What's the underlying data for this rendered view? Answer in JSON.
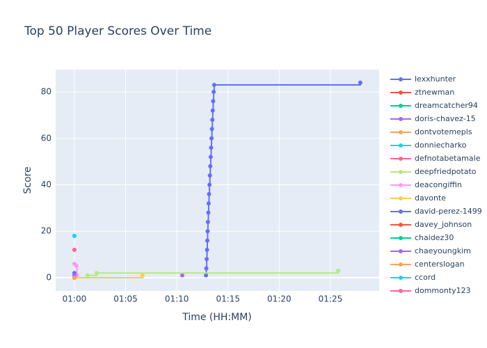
{
  "chart_data": {
    "type": "line",
    "title": "Top 50 Player Scores Over Time",
    "x_label": "Time (HH:MM)",
    "y_label": "Score",
    "line_shape": "hv",
    "grid": true,
    "xlim": [
      58.17,
      89.76
    ],
    "xticks": [
      {
        "value": 60,
        "label": "01:00"
      },
      {
        "value": 65,
        "label": "01:05"
      },
      {
        "value": 70,
        "label": "01:10"
      },
      {
        "value": 75,
        "label": "01:15"
      },
      {
        "value": 80,
        "label": "01:20"
      },
      {
        "value": 85,
        "label": "01:25"
      }
    ],
    "ylim": [
      -5.7,
      89.6
    ],
    "yticks": [
      0,
      20,
      40,
      60,
      80
    ],
    "series": [
      {
        "name": "lexxhunter",
        "color": "#636efa",
        "x": [
          72.85,
          72.88,
          72.92,
          72.95,
          72.98,
          73.01,
          73.04,
          73.08,
          73.11,
          73.15,
          73.19,
          73.23,
          73.27,
          73.31,
          73.35,
          73.39,
          73.43,
          73.47,
          73.51,
          73.55,
          73.6,
          73.65,
          87.92
        ],
        "values": [
          1,
          4,
          8,
          12,
          16,
          20,
          24,
          28,
          32,
          36,
          40,
          44,
          48,
          52,
          56,
          60,
          64,
          68,
          72,
          76,
          80,
          83,
          84
        ]
      },
      {
        "name": "ztnewman",
        "color": "#ef553b",
        "x": [
          60
        ],
        "values": [
          1
        ]
      },
      {
        "name": "dreamcatcher94",
        "color": "#00cc96",
        "x": [
          60
        ],
        "values": [
          1
        ]
      },
      {
        "name": "doris-chavez-15",
        "color": "#ab63fa",
        "x": [
          70.53
        ],
        "values": [
          1
        ]
      },
      {
        "name": "dontvotemepls",
        "color": "#ffa15a",
        "x": [
          60
        ],
        "values": [
          0
        ]
      },
      {
        "name": "donniecharko",
        "color": "#19d3f3",
        "x": [
          60
        ],
        "values": [
          18
        ]
      },
      {
        "name": "defnotabetamale",
        "color": "#ff6692",
        "x": [
          60
        ],
        "values": [
          12
        ]
      },
      {
        "name": "deepfriedpotato",
        "color": "#b6e880",
        "x": [
          60,
          61.29,
          62.17,
          85.75
        ],
        "values": [
          0,
          1,
          2,
          3
        ]
      },
      {
        "name": "deacongiffin",
        "color": "#ff97ff",
        "x": [
          60,
          60.2,
          60.25
        ],
        "values": [
          6,
          5,
          1
        ]
      },
      {
        "name": "davonte",
        "color": "#fecb52",
        "x": [
          60,
          66.66
        ],
        "values": [
          0,
          1
        ]
      },
      {
        "name": "david-perez-1499",
        "color": "#636efa",
        "x": [
          60
        ],
        "values": [
          2
        ]
      },
      {
        "name": "davey_johnson",
        "color": "#ef553b",
        "x": [
          60
        ],
        "values": [
          0
        ]
      },
      {
        "name": "chaidez30",
        "color": "#00cc96",
        "x": [
          60
        ],
        "values": [
          0
        ]
      },
      {
        "name": "chaeyoungkim",
        "color": "#ab63fa",
        "x": [
          60
        ],
        "values": [
          1
        ]
      },
      {
        "name": "centerslogan",
        "color": "#ffa15a",
        "x": [
          60
        ],
        "values": [
          0
        ]
      },
      {
        "name": "ccord",
        "color": "#19d3f3",
        "x": [
          60
        ],
        "values": [
          18
        ]
      },
      {
        "name": "dommonty123",
        "color": "#ff6692",
        "x": [
          60
        ],
        "values": [
          12
        ]
      }
    ]
  }
}
